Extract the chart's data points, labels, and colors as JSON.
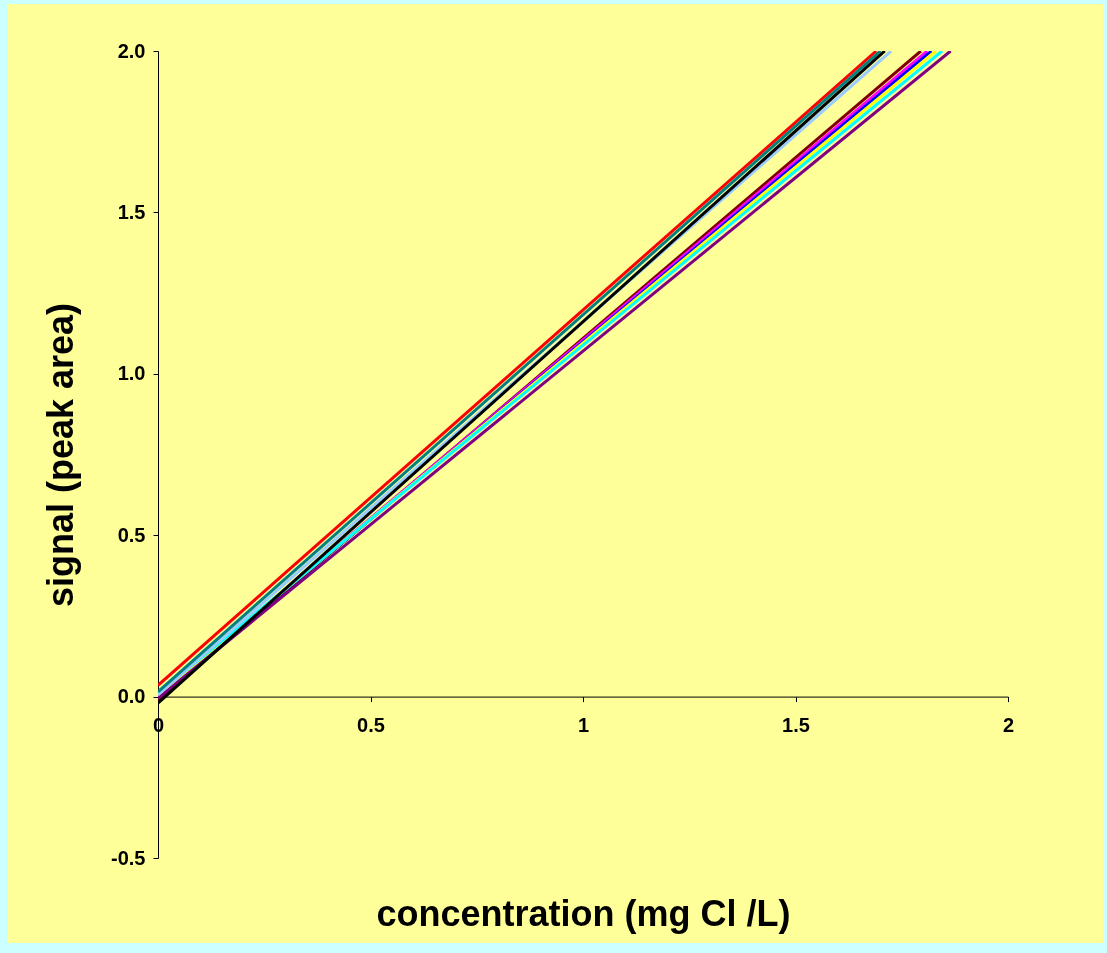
{
  "chart_data": {
    "type": "line",
    "xlabel": "concentration (mg Cl /L)",
    "ylabel": "signal (peak area)",
    "xlim": [
      0,
      2
    ],
    "xticks": [
      0,
      0.5,
      1,
      1.5,
      2
    ],
    "ylim": [
      -0.5,
      2
    ],
    "yticks": [
      {
        "value": -0.5,
        "label": "-0.5"
      },
      {
        "value": 0,
        "label": "0.0"
      },
      {
        "value": 0.5,
        "label": "0.5"
      },
      {
        "value": 1,
        "label": "1.0"
      },
      {
        "value": 1.5,
        "label": "1.5"
      },
      {
        "value": 2,
        "label": "2.0"
      }
    ],
    "grid": false,
    "legend": false,
    "marker": "none",
    "line_style": "solid",
    "series": [
      {
        "color": "#800000",
        "x": [
          0,
          1.795
        ],
        "values": [
          -0.01,
          2
        ]
      },
      {
        "color": "#ff00ff",
        "x": [
          0,
          1.81
        ],
        "values": [
          0,
          2
        ]
      },
      {
        "color": "#0000ff",
        "x": [
          0,
          1.82
        ],
        "values": [
          0,
          2
        ]
      },
      {
        "color": "#ffff00",
        "x": [
          0,
          1.83
        ],
        "values": [
          0.005,
          2
        ]
      },
      {
        "color": "#00ffff",
        "x": [
          0,
          1.845
        ],
        "values": [
          0.01,
          2
        ]
      },
      {
        "color": "#800080",
        "x": [
          0,
          1.865
        ],
        "values": [
          -0.005,
          2
        ]
      },
      {
        "color": "#ff0000",
        "x": [
          0,
          1.69
        ],
        "values": [
          0.035,
          2
        ]
      },
      {
        "color": "#99ccff",
        "x": [
          0,
          1.725
        ],
        "values": [
          0.005,
          2
        ]
      },
      {
        "color": "#008080",
        "x": [
          0,
          1.7
        ],
        "values": [
          0.015,
          2
        ]
      },
      {
        "color": "#000000",
        "x": [
          0,
          1.71
        ],
        "values": [
          -0.02,
          2
        ]
      }
    ]
  }
}
